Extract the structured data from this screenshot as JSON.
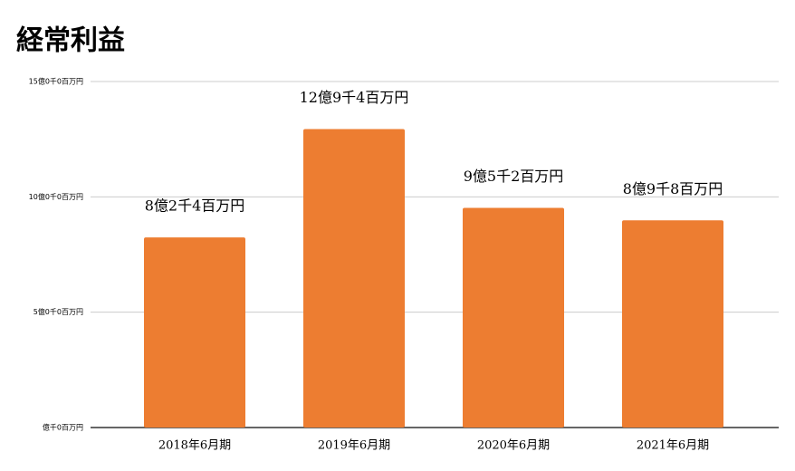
{
  "chart_data": {
    "type": "bar",
    "title": "経常利益",
    "categories": [
      "2018年6月期",
      "2019年6月期",
      "2020年6月期",
      "2021年6月期"
    ],
    "values": [
      8.24,
      12.94,
      9.52,
      8.98
    ],
    "value_labels": [
      "8億2千4百万円",
      "12億9千4百万円",
      "9億5千2百万円",
      "8億9千8百万円"
    ],
    "color": "#ed7d31",
    "ylim": [
      0,
      15
    ],
    "yticks": [
      {
        "value": 0,
        "label": "億千0百万円"
      },
      {
        "value": 5,
        "label": "5億0千0百万円"
      },
      {
        "value": 10,
        "label": "10億0千0百万円"
      },
      {
        "value": 15,
        "label": "15億0千0百万円"
      }
    ],
    "grid": true
  }
}
